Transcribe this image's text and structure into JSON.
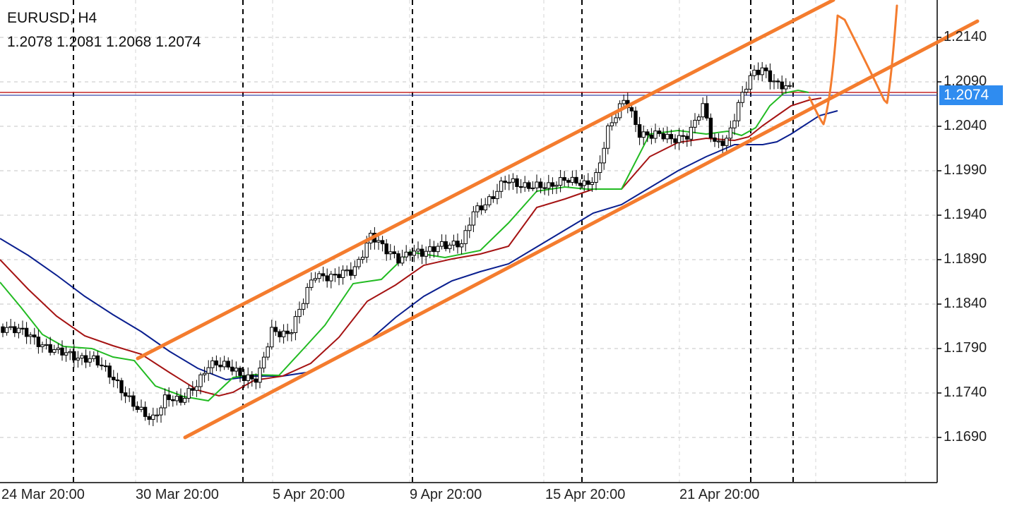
{
  "header": {
    "symbol": "EURUSD, H4",
    "ohlc": "1.2078 1.2081 1.2068 1.2074"
  },
  "price_tag": "1.2074",
  "colors": {
    "candle": "#000000",
    "ma_fast": "#22bb22",
    "ma_mid": "#aa1111",
    "ma_slow": "#0a1f8f",
    "channel": "#f47c2e",
    "price_tag_bg": "#2f8cf0",
    "bid_line": "#c62828",
    "ask_line": "#3949ab"
  },
  "chart_data": {
    "type": "candlestick",
    "title": "EURUSD, H4",
    "timeframe": "H4",
    "last": {
      "open": 1.2078,
      "high": 1.2081,
      "low": 1.2068,
      "close": 1.2074
    },
    "current_price": 1.2074,
    "y_ticks": [
      "1.2140",
      "1.2090",
      "1.2040",
      "1.1990",
      "1.1940",
      "1.1890",
      "1.1840",
      "1.1790",
      "1.1740",
      "1.1690"
    ],
    "x_ticks": [
      "24 Mar 20:00",
      "30 Mar 20:00",
      "5 Apr 20:00",
      "9 Apr 20:00",
      "15 Apr 20:00",
      "21 Apr 20:00"
    ],
    "grid": true,
    "moving_averages": [
      "green",
      "red",
      "blue"
    ],
    "annotations": [
      "upward channel drawn with two orange trend lines",
      "hand-drawn orange zigzag forecast"
    ]
  }
}
